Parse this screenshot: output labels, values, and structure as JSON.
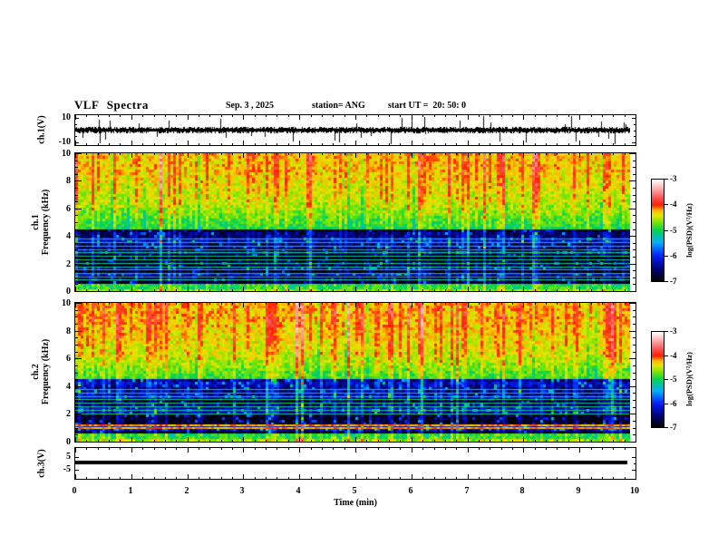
{
  "header": {
    "title": "VLF Spectra",
    "date": "Sep. 3 , 2025",
    "station": "station= ANG",
    "start_ut": "start UT =  20: 50: 0"
  },
  "xaxis": {
    "label": "Time (min)",
    "ticks": [
      "0",
      "1",
      "2",
      "3",
      "4",
      "5",
      "6",
      "7",
      "8",
      "9",
      "10"
    ],
    "range_min": [
      0,
      10
    ]
  },
  "colorbar": {
    "label": "log(PSD)(V²/Hz)",
    "ticks": [
      "-3",
      "-4",
      "-5",
      "-6",
      "-7"
    ],
    "range": [
      -7,
      -3
    ]
  },
  "colormap": {
    "stops": [
      {
        "p": 0.0,
        "c": "#000000"
      },
      {
        "p": 0.12,
        "c": "#000080"
      },
      {
        "p": 0.25,
        "c": "#0020ff"
      },
      {
        "p": 0.38,
        "c": "#00b0ff"
      },
      {
        "p": 0.5,
        "c": "#00d455"
      },
      {
        "p": 0.58,
        "c": "#7ce600"
      },
      {
        "p": 0.65,
        "c": "#e6e600"
      },
      {
        "p": 0.7,
        "c": "#ffb400"
      },
      {
        "p": 0.75,
        "c": "#ff2000"
      },
      {
        "p": 0.82,
        "c": "#ff5050"
      },
      {
        "p": 0.9,
        "c": "#ffa0a0"
      },
      {
        "p": 1.0,
        "c": "#ffffff"
      }
    ]
  },
  "panels": {
    "wave1": {
      "ylabel": "ch.1(V)",
      "ytick_top": "10",
      "ytick_bottom": "-10",
      "ylim": [
        -10,
        10
      ]
    },
    "spec1": {
      "ylabel_channel": "ch.1",
      "ylabel_axis": "Frequency (kHz)",
      "yticks": [
        "0",
        "2",
        "4",
        "6",
        "8",
        "10"
      ],
      "ylim_khz": [
        0,
        10
      ]
    },
    "spec2": {
      "ylabel_channel": "ch.2",
      "ylabel_axis": "Frequency (kHz)",
      "yticks": [
        "0",
        "2",
        "4",
        "6",
        "8",
        "10"
      ],
      "ylim_khz": [
        0,
        10
      ]
    },
    "wave3": {
      "ylabel": "ch.3(V)",
      "ytick_top": "5",
      "ytick_bottom": "-5",
      "ylim": [
        -5,
        5
      ],
      "dc_level_v": 0.5
    }
  },
  "chart_data": [
    {
      "type": "line",
      "panel": "ch.1 time series",
      "ylabel": "ch.1(V)",
      "ylim": [
        -10,
        10
      ],
      "x_range_min": [
        0,
        10
      ],
      "description": "Black broadband noise trace centred on 0 V; baseline about ±1.5 V with frequent impulsive spikes reaching roughly ±9 V throughout the 10-minute record."
    },
    {
      "type": "heatmap",
      "panel": "ch.1 spectrogram",
      "ylabel": "Frequency (kHz)",
      "ylim_khz": [
        0,
        10
      ],
      "x_range_min": [
        0,
        10
      ],
      "colorbar": {
        "label": "log(PSD)(V²/Hz)",
        "range": [
          -7,
          -3
        ]
      },
      "features": {
        "transition_khz": 4.45,
        "top_band_level": -4.35,
        "upper_band_level": -4.62,
        "mid_band_level": -5.05,
        "low_band_level": -6.55,
        "bottom_edge_khz": 0.5,
        "bottom_edge_level": -5.0,
        "harmonic_lines_khz": [
          0.85,
          1.05,
          1.3,
          1.55,
          1.8,
          2.05,
          2.3,
          2.55,
          2.8,
          3.05,
          3.3,
          3.55,
          3.8
        ],
        "harmonic_line_level": -5.2,
        "bright_lines_khz": [],
        "bright_line_level": -4.3,
        "dark_bands_khz": [
          [
            0.62,
            0.8
          ],
          [
            1.35,
            1.6
          ],
          [
            2.2,
            2.5
          ]
        ],
        "sferics": "dense vertical broadband streaks: red (~ -3.8) above 4.5 kHz, cyan-green (~ -5.3) in the dark low band"
      }
    },
    {
      "type": "heatmap",
      "panel": "ch.2 spectrogram",
      "ylabel": "Frequency (kHz)",
      "ylim_khz": [
        0,
        10
      ],
      "x_range_min": [
        0,
        10
      ],
      "colorbar": {
        "label": "log(PSD)(V²/Hz)",
        "range": [
          -7,
          -3
        ]
      },
      "features": {
        "transition_khz": 4.55,
        "top_band_level": -4.3,
        "upper_band_level": -4.55,
        "mid_band_level": -4.95,
        "low_band_level": -6.55,
        "bottom_edge_khz": 0.5,
        "bottom_edge_level": -5.0,
        "harmonic_lines_khz": [
          2.05,
          2.3,
          2.55,
          2.8,
          3.05,
          3.3,
          3.55,
          3.8
        ],
        "harmonic_line_level": -5.2,
        "bright_lines_khz": [
          1.02,
          1.22
        ],
        "bright_line_level": -4.25,
        "dark_bands_khz": [
          [
            0.6,
            0.8
          ],
          [
            1.4,
            1.95
          ]
        ],
        "sferics": "dense vertical broadband streaks: red (~ -3.8) above 4.5 kHz, cyan-green (~ -5.3) in the dark low band"
      }
    },
    {
      "type": "line",
      "panel": "ch.3 time series",
      "ylabel": "ch.3(V)",
      "ylim": [
        -5,
        5
      ],
      "x_range_min": [
        0,
        9.85
      ],
      "description": "Flat constant level near +0.5 V drawn as a thick black horizontal line spanning almost the full record."
    }
  ]
}
